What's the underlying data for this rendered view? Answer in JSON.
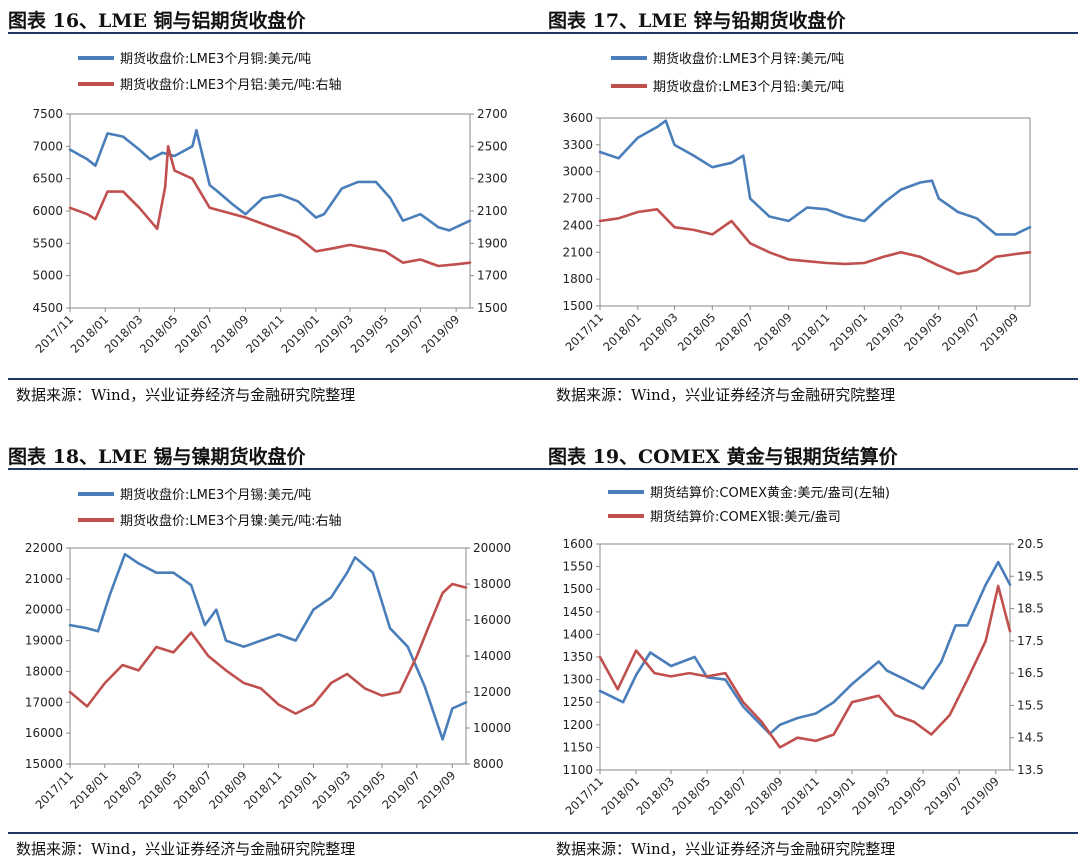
{
  "source_text": "数据来源：Wind，兴业证券经济与金融研究院整理",
  "panels": [
    {
      "title": "图表 16、LME 铜与铝期货收盘价",
      "chart_data": {
        "type": "line",
        "title": "图表 16、LME 铜与铝期货收盘价",
        "xticks": [
          "2017/11",
          "2018/01",
          "2018/03",
          "2018/05",
          "2018/07",
          "2018/09",
          "2018/11",
          "2019/01",
          "2019/03",
          "2019/05",
          "2019/07",
          "2019/09"
        ],
        "x_range": [
          "2017-11-01",
          "2019-09-25"
        ],
        "left_axis": {
          "ylim": [
            4500,
            7500
          ],
          "ticks": [
            4500,
            5000,
            5500,
            6000,
            6500,
            7000,
            7500
          ]
        },
        "right_axis": {
          "ylim": [
            1500,
            2700
          ],
          "ticks": [
            1500,
            1700,
            1900,
            2100,
            2300,
            2500,
            2700
          ]
        },
        "legend_position": "top",
        "series": [
          {
            "name": "期货收盘价:LME3个月铜:美元/吨",
            "axis": "left",
            "color": "#4a7ebb",
            "x": [
              "2017-11-01",
              "2017-12-01",
              "2017-12-15",
              "2018-01-05",
              "2018-02-01",
              "2018-03-01",
              "2018-03-20",
              "2018-04-10",
              "2018-05-01",
              "2018-06-01",
              "2018-06-08",
              "2018-07-01",
              "2018-07-15",
              "2018-08-10",
              "2018-09-01",
              "2018-10-01",
              "2018-11-01",
              "2018-12-01",
              "2019-01-01",
              "2019-01-15",
              "2019-02-15",
              "2019-03-15",
              "2019-04-15",
              "2019-05-10",
              "2019-06-01",
              "2019-07-01",
              "2019-08-01",
              "2019-08-20",
              "2019-09-01",
              "2019-09-25"
            ],
            "y": [
              6950,
              6800,
              6700,
              7200,
              7150,
              6950,
              6800,
              6900,
              6850,
              7000,
              7250,
              6400,
              6300,
              6100,
              5950,
              6200,
              6250,
              6150,
              5900,
              5950,
              6350,
              6450,
              6450,
              6200,
              5850,
              5950,
              5750,
              5700,
              5750,
              5850
            ]
          },
          {
            "name": "期货收盘价:LME3个月铝:美元/吨:右轴",
            "axis": "right",
            "color": "#c0504d",
            "x": [
              "2017-11-01",
              "2017-12-01",
              "2017-12-15",
              "2018-01-05",
              "2018-02-01",
              "2018-03-01",
              "2018-04-01",
              "2018-04-15",
              "2018-04-20",
              "2018-05-01",
              "2018-06-01",
              "2018-07-01",
              "2018-08-01",
              "2018-09-01",
              "2018-10-01",
              "2018-11-01",
              "2018-12-01",
              "2019-01-01",
              "2019-02-01",
              "2019-03-01",
              "2019-04-01",
              "2019-05-01",
              "2019-06-01",
              "2019-07-01",
              "2019-08-01",
              "2019-09-01",
              "2019-09-25"
            ],
            "y": [
              2120,
              2080,
              2050,
              2220,
              2220,
              2120,
              1990,
              2250,
              2500,
              2350,
              2300,
              2120,
              2090,
              2060,
              2020,
              1980,
              1940,
              1850,
              1870,
              1890,
              1870,
              1850,
              1780,
              1800,
              1760,
              1770,
              1780
            ]
          }
        ]
      }
    },
    {
      "title": "图表 17、LME 锌与铅期货收盘价",
      "chart_data": {
        "type": "line",
        "title": "图表 17、LME 锌与铅期货收盘价",
        "xticks": [
          "2017/11",
          "2018/01",
          "2018/03",
          "2018/05",
          "2018/07",
          "2018/09",
          "2018/11",
          "2019/01",
          "2019/03",
          "2019/05",
          "2019/07",
          "2019/09"
        ],
        "x_range": [
          "2017-11-01",
          "2019-09-25"
        ],
        "left_axis": {
          "ylim": [
            1500,
            3600
          ],
          "ticks": [
            1500,
            1800,
            2100,
            2400,
            2700,
            3000,
            3300,
            3600
          ]
        },
        "legend_position": "top",
        "series": [
          {
            "name": "期货收盘价:LME3个月锌:美元/吨",
            "axis": "left",
            "color": "#4a7ebb",
            "x": [
              "2017-11-01",
              "2017-12-01",
              "2018-01-01",
              "2018-02-01",
              "2018-02-15",
              "2018-03-01",
              "2018-04-01",
              "2018-05-01",
              "2018-06-01",
              "2018-06-20",
              "2018-07-01",
              "2018-08-01",
              "2018-09-01",
              "2018-10-01",
              "2018-11-01",
              "2018-12-01",
              "2019-01-01",
              "2019-02-01",
              "2019-03-01",
              "2019-04-01",
              "2019-04-20",
              "2019-05-01",
              "2019-06-01",
              "2019-07-01",
              "2019-08-01",
              "2019-09-01",
              "2019-09-25"
            ],
            "y": [
              3220,
              3150,
              3380,
              3500,
              3570,
              3300,
              3180,
              3050,
              3100,
              3180,
              2700,
              2500,
              2450,
              2600,
              2580,
              2500,
              2450,
              2650,
              2800,
              2880,
              2900,
              2700,
              2550,
              2480,
              2300,
              2300,
              2380
            ]
          },
          {
            "name": "期货收盘价:LME3个月铅:美元/吨",
            "axis": "left",
            "color": "#c0504d",
            "x": [
              "2017-11-01",
              "2017-12-01",
              "2018-01-01",
              "2018-02-01",
              "2018-03-01",
              "2018-04-01",
              "2018-05-01",
              "2018-06-01",
              "2018-07-01",
              "2018-08-01",
              "2018-09-01",
              "2018-10-01",
              "2018-11-01",
              "2018-12-01",
              "2019-01-01",
              "2019-02-01",
              "2019-03-01",
              "2019-04-01",
              "2019-05-01",
              "2019-06-01",
              "2019-07-01",
              "2019-08-01",
              "2019-09-01",
              "2019-09-25"
            ],
            "y": [
              2450,
              2480,
              2550,
              2580,
              2380,
              2350,
              2300,
              2450,
              2200,
              2100,
              2020,
              2000,
              1980,
              1970,
              1980,
              2050,
              2100,
              2050,
              1950,
              1860,
              1900,
              2050,
              2080,
              2100
            ]
          }
        ]
      }
    },
    {
      "title": "图表 18、LME 锡与镍期货收盘价",
      "chart_data": {
        "type": "line",
        "title": "图表 18、LME 锡与镍期货收盘价",
        "xticks": [
          "2017/11",
          "2018/01",
          "2018/03",
          "2018/05",
          "2018/07",
          "2018/09",
          "2018/11",
          "2019/01",
          "2019/03",
          "2019/05",
          "2019/07",
          "2019/09"
        ],
        "x_range": [
          "2017-11-01",
          "2019-09-25"
        ],
        "left_axis": {
          "ylim": [
            15000,
            22000
          ],
          "ticks": [
            15000,
            16000,
            17000,
            18000,
            19000,
            20000,
            21000,
            22000
          ]
        },
        "right_axis": {
          "ylim": [
            8000,
            20000
          ],
          "ticks": [
            8000,
            10000,
            12000,
            14000,
            16000,
            18000,
            20000
          ]
        },
        "legend_position": "top",
        "series": [
          {
            "name": "期货收盘价:LME3个月锡:美元/吨",
            "axis": "left",
            "color": "#4a7ebb",
            "x": [
              "2017-11-01",
              "2017-12-01",
              "2017-12-20",
              "2018-01-10",
              "2018-02-05",
              "2018-03-01",
              "2018-04-01",
              "2018-05-01",
              "2018-06-01",
              "2018-06-25",
              "2018-07-15",
              "2018-08-01",
              "2018-09-01",
              "2018-10-01",
              "2018-11-01",
              "2018-12-01",
              "2019-01-01",
              "2019-02-01",
              "2019-03-01",
              "2019-03-15",
              "2019-04-15",
              "2019-05-15",
              "2019-06-15",
              "2019-07-15",
              "2019-08-15",
              "2019-09-01",
              "2019-09-25"
            ],
            "y": [
              19500,
              19400,
              19300,
              20500,
              21800,
              21500,
              21200,
              21200,
              20800,
              19500,
              20000,
              19000,
              18800,
              19000,
              19200,
              19000,
              20000,
              20400,
              21200,
              21700,
              21200,
              19400,
              18800,
              17500,
              15800,
              16800,
              17000
            ]
          },
          {
            "name": "期货收盘价:LME3个月镍:美元/吨:右轴",
            "axis": "right",
            "color": "#c0504d",
            "x": [
              "2017-11-01",
              "2017-12-01",
              "2018-01-01",
              "2018-02-01",
              "2018-03-01",
              "2018-04-01",
              "2018-05-01",
              "2018-06-01",
              "2018-07-01",
              "2018-08-01",
              "2018-09-01",
              "2018-10-01",
              "2018-11-01",
              "2018-12-01",
              "2019-01-01",
              "2019-02-01",
              "2019-03-01",
              "2019-04-01",
              "2019-05-01",
              "2019-06-01",
              "2019-07-01",
              "2019-07-20",
              "2019-08-15",
              "2019-09-01",
              "2019-09-25"
            ],
            "y": [
              12000,
              11200,
              12500,
              13500,
              13200,
              14500,
              14200,
              15300,
              14000,
              13200,
              12500,
              12200,
              11300,
              10800,
              11300,
              12500,
              13000,
              12200,
              11800,
              12000,
              14000,
              15500,
              17500,
              18000,
              17800
            ]
          }
        ]
      }
    },
    {
      "title": "图表 19、COMEX 黄金与银期货结算价",
      "chart_data": {
        "type": "line",
        "title": "图表 19、COMEX 黄金与银期货结算价",
        "xticks": [
          "2017/11",
          "2018/01",
          "2018/03",
          "2018/05",
          "2018/07",
          "2018/09",
          "2018/11",
          "2019/01",
          "2019/03",
          "2019/05",
          "2019/07",
          "2019/09"
        ],
        "x_range": [
          "2017-11-01",
          "2019-09-25"
        ],
        "left_axis": {
          "ylim": [
            1100,
            1600
          ],
          "ticks": [
            1100,
            1150,
            1200,
            1250,
            1300,
            1350,
            1400,
            1450,
            1500,
            1550,
            1600
          ]
        },
        "right_axis": {
          "ylim": [
            13.5,
            20.5
          ],
          "ticks": [
            13.5,
            14.5,
            15.5,
            16.5,
            17.5,
            18.5,
            19.5,
            20.5
          ]
        },
        "legend_position": "top",
        "series": [
          {
            "name": "期货结算价:COMEX黄金:美元/盎司(左轴)",
            "axis": "left",
            "color": "#4a7ebb",
            "x": [
              "2017-11-01",
              "2017-12-10",
              "2018-01-01",
              "2018-01-25",
              "2018-03-01",
              "2018-04-10",
              "2018-05-01",
              "2018-06-01",
              "2018-07-01",
              "2018-08-15",
              "2018-09-01",
              "2018-10-01",
              "2018-11-01",
              "2018-12-01",
              "2019-01-01",
              "2019-02-15",
              "2019-03-01",
              "2019-04-01",
              "2019-05-01",
              "2019-06-01",
              "2019-06-25",
              "2019-07-15",
              "2019-08-15",
              "2019-09-05",
              "2019-09-25"
            ],
            "y": [
              1275,
              1250,
              1310,
              1360,
              1330,
              1350,
              1305,
              1300,
              1240,
              1180,
              1200,
              1215,
              1225,
              1250,
              1290,
              1340,
              1320,
              1300,
              1280,
              1340,
              1420,
              1420,
              1510,
              1560,
              1510
            ]
          },
          {
            "name": "期货结算价:COMEX银:美元/盎司",
            "axis": "right",
            "color": "#c0504d",
            "x": [
              "2017-11-01",
              "2017-12-01",
              "2018-01-01",
              "2018-02-01",
              "2018-03-01",
              "2018-04-01",
              "2018-05-01",
              "2018-06-01",
              "2018-07-01",
              "2018-08-01",
              "2018-09-01",
              "2018-10-01",
              "2018-11-01",
              "2018-12-01",
              "2019-01-01",
              "2019-02-15",
              "2019-03-15",
              "2019-04-15",
              "2019-05-15",
              "2019-06-15",
              "2019-07-15",
              "2019-08-15",
              "2019-09-05",
              "2019-09-25"
            ],
            "y": [
              17.0,
              16.0,
              17.2,
              16.5,
              16.4,
              16.5,
              16.4,
              16.5,
              15.6,
              15.0,
              14.2,
              14.5,
              14.4,
              14.6,
              15.6,
              15.8,
              15.2,
              15.0,
              14.6,
              15.2,
              16.3,
              17.5,
              19.2,
              17.8
            ]
          }
        ]
      }
    }
  ]
}
